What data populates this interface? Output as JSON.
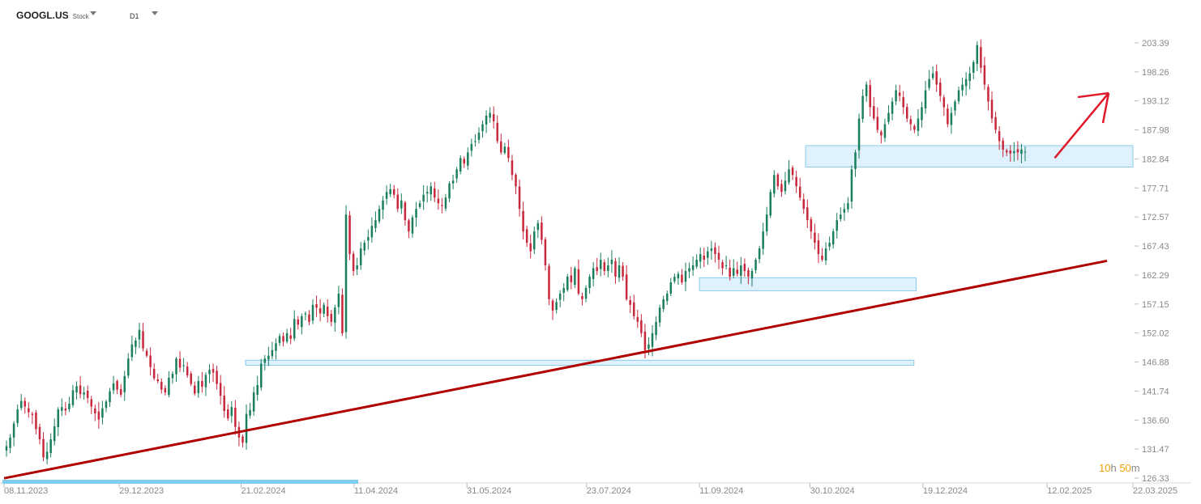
{
  "header": {
    "symbol": "GOOGL.US",
    "instrument_type": "Stock",
    "timeframe": "D1"
  },
  "countdown": {
    "hours": "10",
    "hours_unit": "h",
    "minutes": "50",
    "minutes_unit": "m"
  },
  "colors": {
    "bull": "#1a7f5a",
    "bear": "#c8283c",
    "trendline": "#b00000",
    "zone_fill": "#d8eefb",
    "zone_stroke": "#8ccbea",
    "arrow": "#e0182a",
    "bottom_bar": "#7fcdf0"
  },
  "chart_data": {
    "type": "candlestick",
    "y_ticks": [
      "203.39",
      "198.26",
      "193.12",
      "187.98",
      "182.84",
      "177.71",
      "172.57",
      "167.43",
      "162.29",
      "157.15",
      "152.02",
      "146.88",
      "141.74",
      "136.60",
      "131.47",
      "126.33"
    ],
    "x_ticks": [
      "08.11.2023",
      "29.12.2023",
      "21.02.2024",
      "11.04.2024",
      "31.05.2024",
      "23.07.2024",
      "11.09.2024",
      "30.10.2024",
      "19.12.2024",
      "12.02.2025",
      "22.03.2025"
    ],
    "ylim": [
      126.33,
      203.39
    ],
    "closes_approx": [
      132,
      133.5,
      136,
      138.5,
      140,
      139,
      138,
      137.5,
      135,
      133.2,
      130,
      131,
      133.2,
      135.5,
      138.5,
      138.9,
      138.3,
      139.5,
      141.9,
      142.6,
      141.2,
      141.5,
      140.5,
      139,
      137.8,
      136.7,
      138.7,
      139.9,
      141.7,
      143.1,
      142,
      141.1,
      144.4,
      147.5,
      150,
      150.7,
      152.6,
      149.3,
      148,
      146,
      144,
      143.5,
      142,
      141.5,
      144.1,
      144.8,
      147.5,
      145.9,
      146.3,
      144.5,
      143,
      141.3,
      143.5,
      142.5,
      144.6,
      145.5,
      145,
      143,
      140.9,
      138.2,
      136.9,
      138.9,
      135.4,
      133.5,
      132.6,
      137.7,
      138.4,
      141.5,
      142.8,
      146.6,
      147.5,
      148,
      149,
      150.2,
      151.5,
      150.5,
      152,
      151,
      154.5,
      153.5,
      155,
      155.5,
      154,
      157,
      156.5,
      155.5,
      157,
      155,
      154,
      156.5,
      159,
      152,
      173,
      166,
      163,
      164,
      167,
      168,
      169,
      171,
      172,
      174,
      175.5,
      177,
      177.5,
      176.5,
      174,
      175.5,
      172,
      170,
      172.5,
      174,
      175,
      176.5,
      177,
      178,
      176,
      175,
      174.5,
      176,
      178.5,
      179,
      181,
      183,
      182,
      184,
      185.5,
      186,
      187.5,
      189,
      190.5,
      191,
      189.5,
      186,
      184,
      185,
      183,
      180,
      178,
      174,
      170,
      168,
      166.5,
      170,
      171.5,
      168.5,
      164,
      158,
      156,
      157.5,
      159,
      160,
      162,
      161,
      163.5,
      159,
      158,
      160,
      162,
      163.5,
      163,
      165,
      163,
      164,
      165,
      162,
      164,
      162,
      158,
      157,
      155,
      154,
      152,
      149,
      150,
      152,
      154,
      156.5,
      158,
      159,
      161,
      162,
      162.5,
      161,
      163,
      163.5,
      164,
      165,
      166,
      165,
      166.5,
      167,
      166,
      165,
      163.5,
      164,
      162,
      163.5,
      162.5,
      164,
      163,
      162,
      163,
      165,
      167,
      170,
      173,
      177,
      180,
      178,
      177,
      179,
      181,
      180,
      178,
      176,
      174,
      172,
      170,
      168,
      166,
      165,
      167,
      168,
      170,
      172,
      173,
      174,
      175,
      181,
      184,
      190,
      194,
      196,
      192,
      190,
      188,
      187,
      189,
      191,
      193,
      195,
      194,
      192,
      190,
      189,
      188,
      190,
      192,
      195,
      197,
      198,
      196,
      194,
      192,
      189,
      191,
      193,
      195,
      196,
      197,
      198,
      200,
      203,
      199,
      196,
      193,
      190,
      188,
      186,
      184.5,
      184,
      183.8,
      184.2,
      184,
      184.5,
      184.1
    ]
  },
  "annotations": {
    "zones": [
      {
        "name": "zone-lower",
        "from": "23.02.2024",
        "to": "15.12.2024",
        "low": 146.3,
        "high": 147.2
      },
      {
        "name": "zone-middle",
        "from": "11.09.2024",
        "to": "16.12.2024",
        "low": 159.5,
        "high": 161.8
      },
      {
        "name": "zone-upper",
        "from": "28.10.2024",
        "to": "22.03.2025",
        "low": 181.4,
        "high": 185.2
      }
    ],
    "trendline": {
      "from": [
        "08.11.2023",
        126.3
      ],
      "to": [
        "22.03.2025",
        164.8
      ]
    },
    "arrow": {
      "from": [
        "15.02.2025",
        183.0
      ],
      "to": [
        "22.03.2025",
        194.5
      ]
    }
  }
}
